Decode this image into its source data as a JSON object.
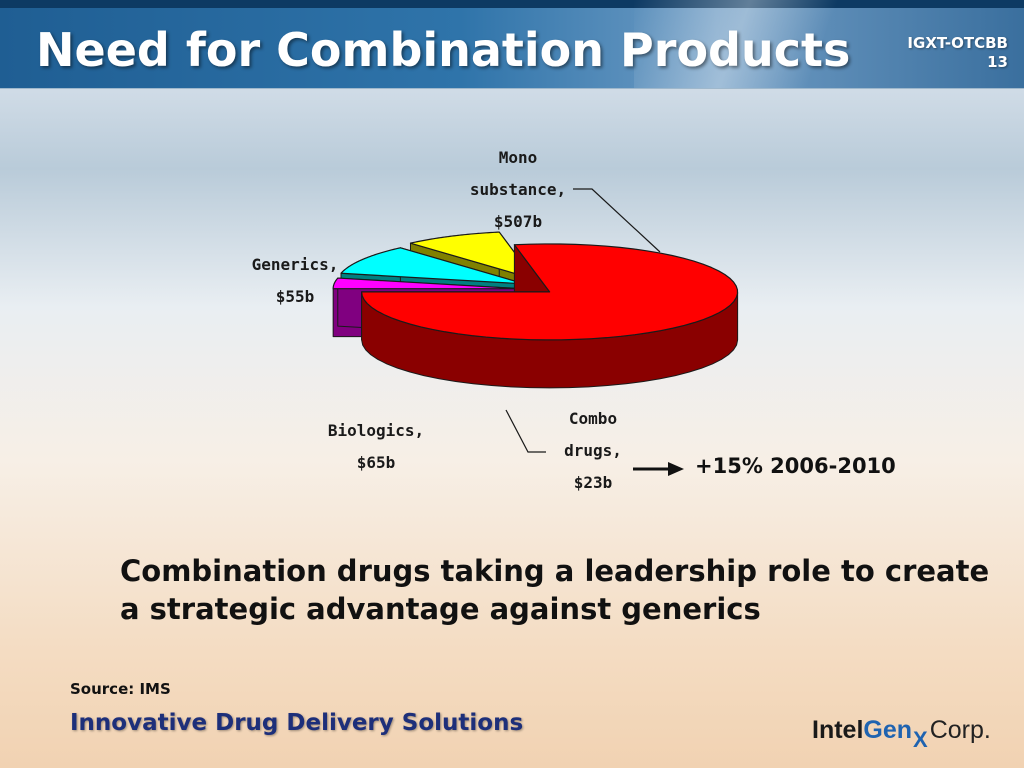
{
  "slide": {
    "title": "Need for Combination Products",
    "ticker": "IGXT-OTCBB",
    "page_number": "13"
  },
  "chart_data": {
    "type": "pie",
    "style": "3d-exploded",
    "slices": [
      {
        "label_lines": [
          "Mono",
          "substance,",
          "$507b"
        ],
        "category": "Mono substance",
        "value": 507,
        "unit": "$b",
        "color": "#ff0000",
        "side_color": "#8a0000"
      },
      {
        "label_lines": [
          "Generics,",
          "$55b"
        ],
        "category": "Generics",
        "value": 55,
        "unit": "$b",
        "color": "#ffff00",
        "side_color": "#808000"
      },
      {
        "label_lines": [
          "Biologics,",
          "$65b"
        ],
        "category": "Biologics",
        "value": 65,
        "unit": "$b",
        "color": "#00ffff",
        "side_color": "#008080"
      },
      {
        "label_lines": [
          "Combo",
          "drugs,",
          "$23b"
        ],
        "category": "Combo drugs",
        "value": 23,
        "unit": "$b",
        "color": "#ff00ff",
        "side_color": "#800080"
      }
    ]
  },
  "annotation": {
    "growth_text": "+15% 2006-2010"
  },
  "statement": "Combination drugs taking a leadership role to create a strategic advantage against generics",
  "source": "Source: IMS",
  "tagline": "Innovative Drug Delivery Solutions",
  "logo": {
    "intel": "Intel",
    "gen": "Gen",
    "x": "X",
    "corp": "Corp."
  }
}
